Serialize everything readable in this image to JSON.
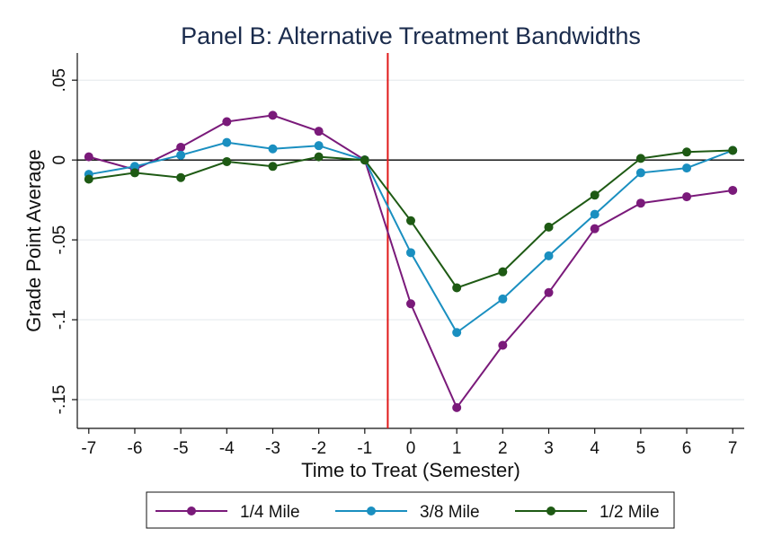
{
  "chart_data": {
    "type": "line",
    "title": "Panel B: Alternative Treatment Bandwidths",
    "xlabel": "Time to Treat (Semester)",
    "ylabel": "Grade Point Average",
    "x": [
      -7,
      -6,
      -5,
      -4,
      -3,
      -2,
      -1,
      0,
      1,
      2,
      3,
      4,
      5,
      6,
      7
    ],
    "x_tick_labels": [
      "-7",
      "-6",
      "-5",
      "-4",
      "-3",
      "-2",
      "-1",
      "0",
      "1",
      "2",
      "3",
      "4",
      "5",
      "6",
      "7"
    ],
    "y_ticks": [
      0.05,
      0,
      -0.05,
      -0.1,
      -0.15
    ],
    "y_tick_labels": [
      ".05",
      "0",
      "-.05",
      "-.1",
      "-.15"
    ],
    "xlim": [
      -7.25,
      7.25
    ],
    "ylim": [
      -0.168,
      0.067
    ],
    "reference_lines": {
      "horizontal_y": 0,
      "vertical_x": -0.5
    },
    "grid": "horizontal",
    "legend_position": "bottom",
    "series": [
      {
        "name": "1/4 Mile",
        "color": "#7a1a7a",
        "values": [
          0.002,
          -0.006,
          0.008,
          0.024,
          0.028,
          0.018,
          0.0,
          -0.09,
          -0.155,
          -0.116,
          -0.083,
          -0.043,
          -0.027,
          -0.023,
          -0.019
        ]
      },
      {
        "name": "3/8 Mile",
        "color": "#1a8fc0",
        "values": [
          -0.009,
          -0.004,
          0.003,
          0.011,
          0.007,
          0.009,
          0.0,
          -0.058,
          -0.108,
          -0.087,
          -0.06,
          -0.034,
          -0.008,
          -0.005,
          0.006
        ]
      },
      {
        "name": "1/2 Mile",
        "color": "#1e5a14",
        "values": [
          -0.012,
          -0.008,
          -0.011,
          -0.001,
          -0.004,
          0.002,
          0.0,
          -0.038,
          -0.08,
          -0.07,
          -0.042,
          -0.022,
          0.001,
          0.005,
          0.006
        ]
      }
    ]
  }
}
